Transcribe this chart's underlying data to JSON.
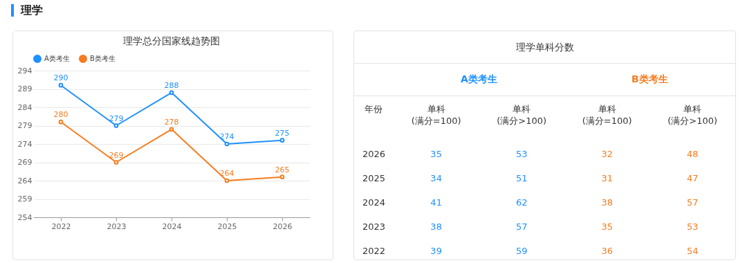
{
  "chart_data": [
    {
      "type": "other",
      "title": "理学"
    },
    {
      "type": "line",
      "title": "理学总分国家线趋势图",
      "categories": [
        "2022",
        "2023",
        "2024",
        "2025",
        "2026"
      ],
      "series": [
        {
          "name": "A类考生",
          "color": "#1e90ff",
          "values": [
            290,
            279,
            288,
            274,
            275
          ]
        },
        {
          "name": "B类考生",
          "color": "#f57c1f",
          "values": [
            280,
            269,
            278,
            264,
            265
          ]
        }
      ],
      "ylim": [
        254,
        294
      ],
      "yticks": [
        254,
        259,
        264,
        269,
        274,
        279,
        284,
        289,
        294
      ],
      "grid": "y",
      "legend": "top",
      "marker": "circle",
      "data_labels": true
    },
    {
      "type": "heatmap",
      "title": "理学单科分数",
      "annotations": [
        "A类考生",
        "B类考生",
        "年份"
      ],
      "categories": [
        "单科\n(满分=100)",
        "单科\n(满分>100)",
        "单科\n(满分=100)",
        "单科\n(满分>100)"
      ],
      "y_categories": [
        "2026",
        "2025",
        "2024",
        "2023",
        "2022"
      ],
      "data_labels": true,
      "cells": [
        [
          35,
          53,
          32,
          48
        ],
        [
          34,
          51,
          31,
          47
        ],
        [
          41,
          62,
          38,
          57
        ],
        [
          38,
          57,
          35,
          53
        ],
        [
          39,
          59,
          36,
          54
        ]
      ]
    }
  ]
}
